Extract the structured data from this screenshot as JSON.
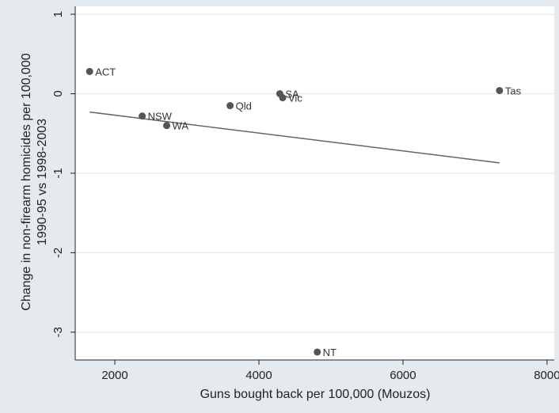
{
  "chart_data": {
    "type": "scatter",
    "title": "",
    "xlabel": "Guns bought back per 100,000 (Mouzos)",
    "ylabel": [
      "Change in non-firearm homicides per 100,000",
      "1990-95 vs 1998-2003"
    ],
    "xlim": [
      1450,
      8100
    ],
    "ylim": [
      -3.35,
      1.1
    ],
    "xticks": [
      2000,
      4000,
      6000,
      8000
    ],
    "yticks": [
      1,
      0,
      -1,
      -2,
      -3
    ],
    "grid": true,
    "legend": "none",
    "colors": {
      "background": "#e5eaee",
      "plot_background": "#ffffff",
      "point": "#555555",
      "line": "#666666",
      "grid": "#e5eaee",
      "text": "#222222"
    },
    "points": [
      {
        "label": "ACT",
        "x": 1650,
        "y": 0.28
      },
      {
        "label": "NSW",
        "x": 2380,
        "y": -0.28
      },
      {
        "label": "WA",
        "x": 2720,
        "y": -0.4
      },
      {
        "label": "Qld",
        "x": 3600,
        "y": -0.15
      },
      {
        "label": "SA",
        "x": 4290,
        "y": 0.0
      },
      {
        "label": "Vic",
        "x": 4330,
        "y": -0.05
      },
      {
        "label": "NT",
        "x": 4810,
        "y": -3.25
      },
      {
        "label": "Tas",
        "x": 7340,
        "y": 0.04
      }
    ],
    "fit_line": {
      "x": [
        1650,
        7340
      ],
      "y": [
        -0.23,
        -0.87
      ]
    }
  }
}
